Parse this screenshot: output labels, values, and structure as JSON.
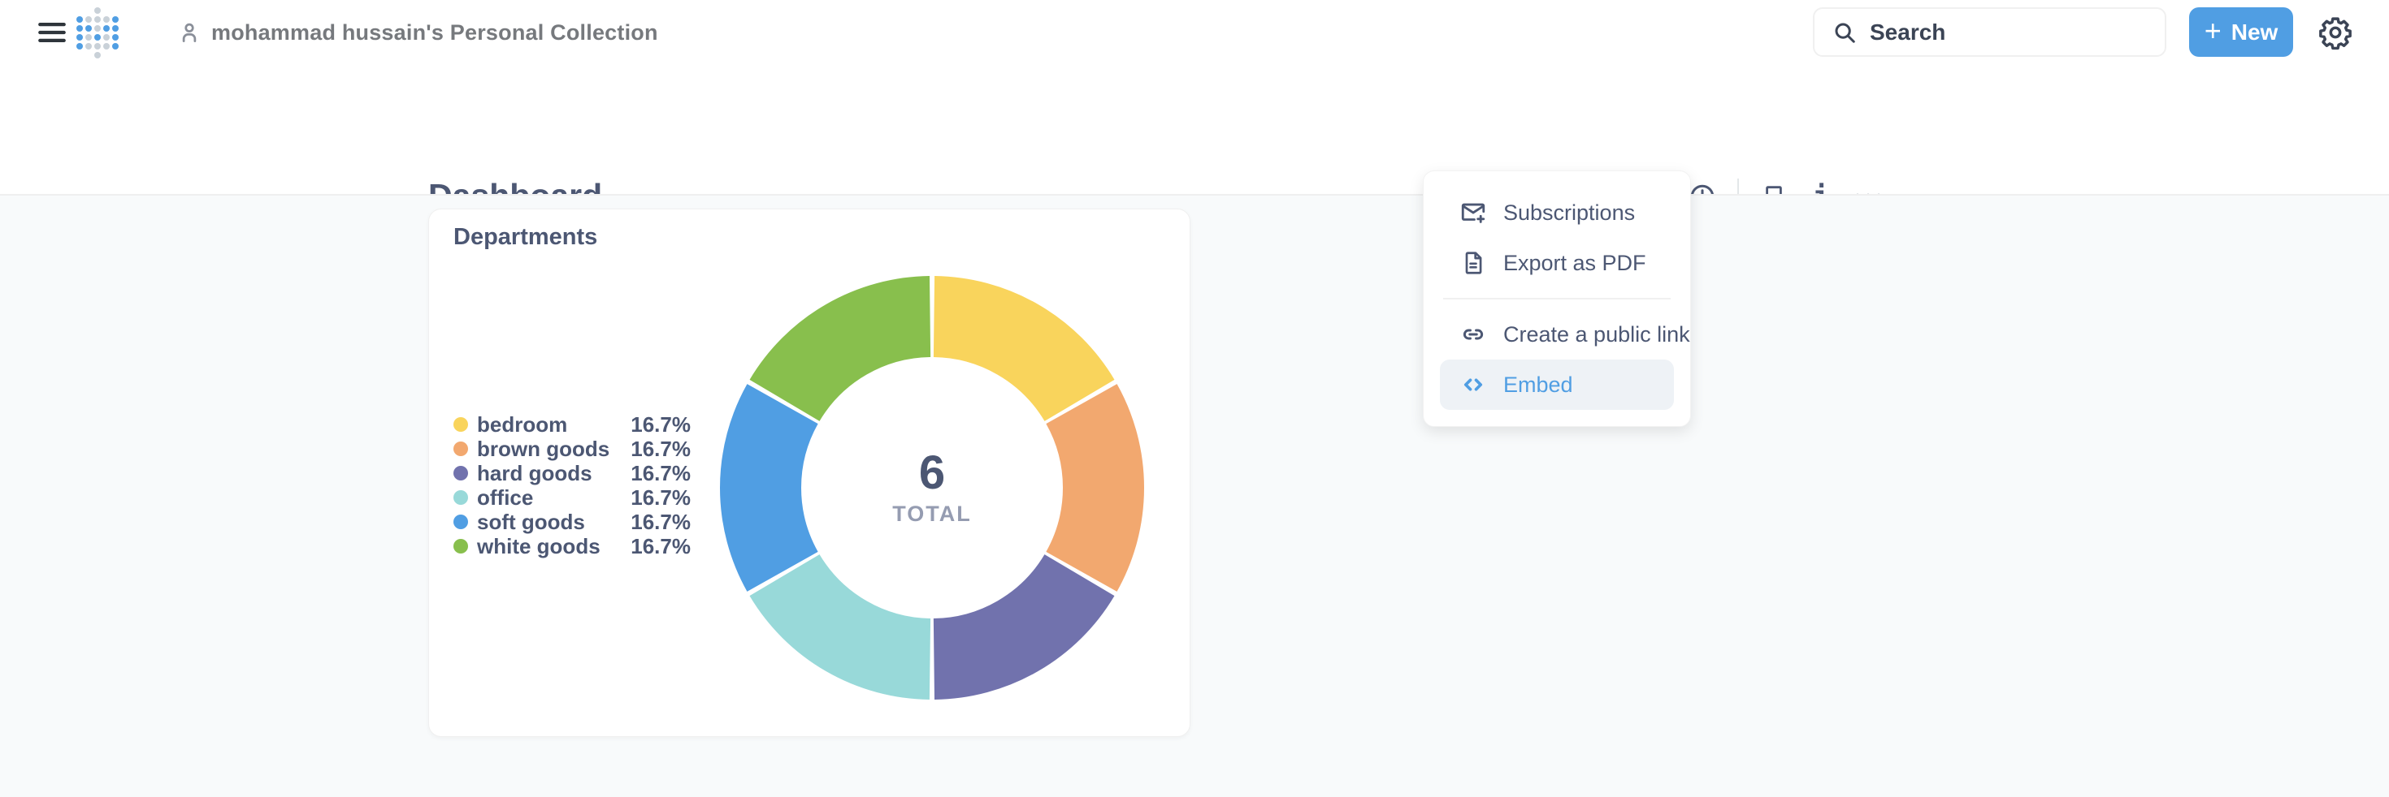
{
  "colors": {
    "accent": "#509EE3",
    "text_dark": "#4C5773",
    "text_medium": "#76797D",
    "background": "#F8FAFB"
  },
  "appbar": {
    "breadcrumb": "mohammad hussain's Personal Collection",
    "search_placeholder": "Search",
    "new_button": {
      "plus": "+",
      "label": "New"
    }
  },
  "page": {
    "title": "Dashboard"
  },
  "toolbar": {
    "icons": [
      "edit-pencil",
      "export-sharing",
      "auto-refresh-clock",
      "bookmark",
      "info",
      "more-ellipsis"
    ]
  },
  "menu": {
    "groups": [
      [
        {
          "id": "subscriptions",
          "icon": "subscriptions-icon",
          "label": "Subscriptions",
          "active": false
        },
        {
          "id": "export-pdf",
          "icon": "document-icon",
          "label": "Export as PDF",
          "active": false
        }
      ],
      [
        {
          "id": "public-link",
          "icon": "link-icon",
          "label": "Create a public link",
          "active": false
        },
        {
          "id": "embed",
          "icon": "code-icon",
          "label": "Embed",
          "active": true
        }
      ]
    ]
  },
  "card": {
    "title": "Departments"
  },
  "chart_data": {
    "type": "pie",
    "title": "Departments",
    "categories": [
      "bedroom",
      "brown goods",
      "hard goods",
      "office",
      "soft goods",
      "white goods"
    ],
    "values": [
      1,
      1,
      1,
      1,
      1,
      1
    ],
    "percent_labels": [
      "16.7%",
      "16.7%",
      "16.7%",
      "16.7%",
      "16.7%",
      "16.7%"
    ],
    "colors": [
      "#F9D45C",
      "#F2A86F",
      "#7172AD",
      "#98D9D9",
      "#509EE3",
      "#88BF4D"
    ],
    "center_value": "6",
    "center_label": "TOTAL",
    "legend_position": "left",
    "donut": true
  }
}
